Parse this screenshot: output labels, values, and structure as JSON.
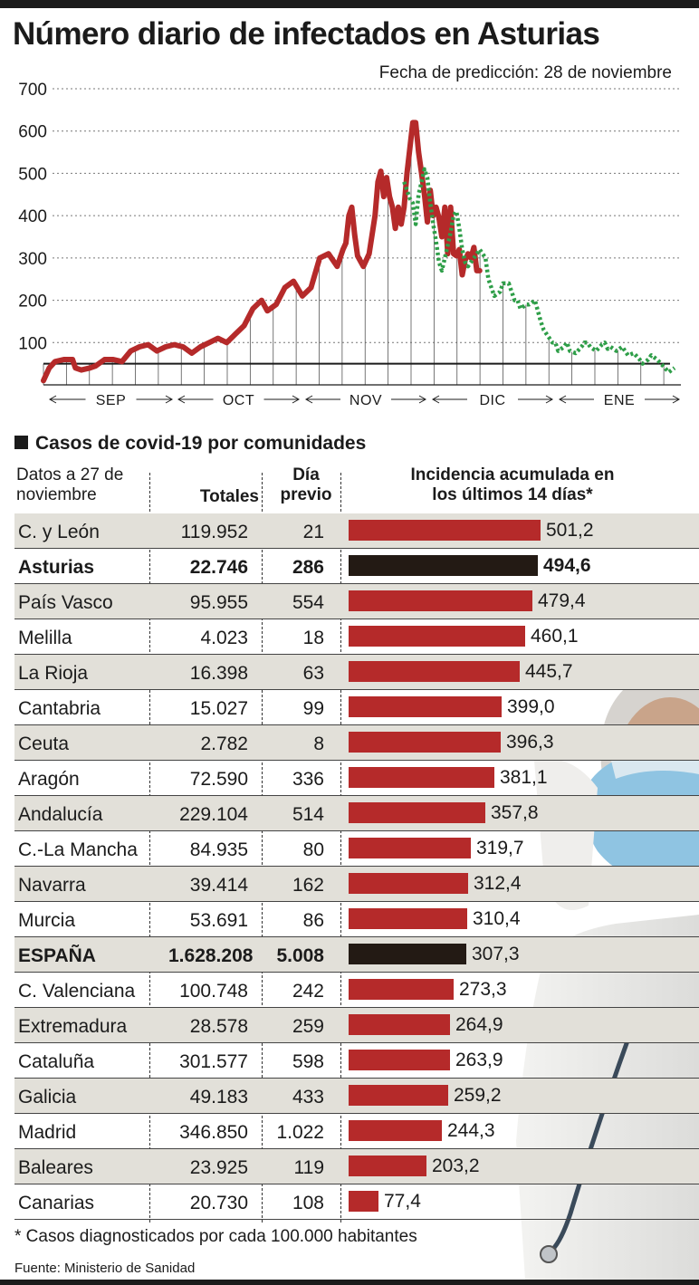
{
  "title": "Número diario de infectados en Asturias",
  "prediction_date": "Fecha de predicción: 28 de noviembre",
  "chart_data": {
    "type": "line",
    "title": "Número diario de infectados en Asturias",
    "ylim": [
      0,
      700
    ],
    "yticks": [
      "100",
      "200",
      "300",
      "400",
      "500",
      "600",
      "700"
    ],
    "reference_line": 50,
    "x_months": [
      "SEP",
      "OCT",
      "NOV",
      "DIC",
      "ENE"
    ],
    "series": [
      {
        "role": "observed",
        "color": "#b52a2a",
        "style": "solid",
        "points": [
          [
            0,
            10
          ],
          [
            2,
            40
          ],
          [
            4,
            55
          ],
          [
            7,
            60
          ],
          [
            8,
            60
          ],
          [
            10,
            60
          ],
          [
            11,
            40
          ],
          [
            13,
            35
          ],
          [
            16,
            40
          ],
          [
            18,
            45
          ],
          [
            21,
            60
          ],
          [
            24,
            60
          ],
          [
            27,
            55
          ],
          [
            30,
            80
          ],
          [
            33,
            90
          ],
          [
            36,
            95
          ],
          [
            39,
            80
          ],
          [
            42,
            90
          ],
          [
            45,
            95
          ],
          [
            48,
            90
          ],
          [
            51,
            75
          ],
          [
            54,
            90
          ],
          [
            57,
            100
          ],
          [
            60,
            110
          ],
          [
            63,
            100
          ],
          [
            66,
            120
          ],
          [
            69,
            140
          ],
          [
            72,
            180
          ],
          [
            75,
            200
          ],
          [
            77,
            175
          ],
          [
            80,
            190
          ],
          [
            83,
            230
          ],
          [
            86,
            245
          ],
          [
            89,
            210
          ],
          [
            92,
            230
          ],
          [
            95,
            300
          ],
          [
            98,
            310
          ],
          [
            101,
            280
          ],
          [
            103,
            320
          ],
          [
            104,
            335
          ],
          [
            105,
            400
          ],
          [
            106,
            420
          ],
          [
            107,
            355
          ],
          [
            108,
            305
          ],
          [
            110,
            280
          ],
          [
            112,
            310
          ],
          [
            114,
            400
          ],
          [
            115,
            480
          ],
          [
            116,
            505
          ],
          [
            117,
            445
          ],
          [
            118,
            490
          ],
          [
            119,
            445
          ],
          [
            120,
            420
          ],
          [
            121,
            370
          ],
          [
            122,
            420
          ],
          [
            123,
            380
          ],
          [
            124,
            420
          ],
          [
            125,
            500
          ],
          [
            126,
            560
          ],
          [
            127,
            620
          ],
          [
            128,
            620
          ],
          [
            129,
            550
          ],
          [
            130,
            500
          ],
          [
            131,
            450
          ],
          [
            132,
            385
          ],
          [
            133,
            460
          ],
          [
            134,
            400
          ],
          [
            135,
            420
          ],
          [
            136,
            395
          ],
          [
            137,
            350
          ],
          [
            138,
            420
          ],
          [
            139,
            310
          ],
          [
            140,
            420
          ],
          [
            141,
            310
          ],
          [
            142,
            305
          ],
          [
            143,
            320
          ],
          [
            144,
            260
          ],
          [
            145,
            295
          ],
          [
            146,
            310
          ],
          [
            147,
            300
          ],
          [
            148,
            325
          ],
          [
            149,
            270
          ],
          [
            150,
            270
          ]
        ]
      },
      {
        "role": "prediction",
        "color": "#2e9e48",
        "style": "dotted",
        "points": [
          [
            124,
            480
          ],
          [
            125,
            460
          ],
          [
            126,
            440
          ],
          [
            127,
            430
          ],
          [
            128,
            380
          ],
          [
            129,
            450
          ],
          [
            130,
            480
          ],
          [
            131,
            510
          ],
          [
            132,
            490
          ],
          [
            133,
            430
          ],
          [
            134,
            380
          ],
          [
            135,
            340
          ],
          [
            136,
            290
          ],
          [
            137,
            270
          ],
          [
            138,
            300
          ],
          [
            139,
            330
          ],
          [
            140,
            360
          ],
          [
            141,
            400
          ],
          [
            142,
            410
          ],
          [
            143,
            370
          ],
          [
            144,
            320
          ],
          [
            145,
            290
          ],
          [
            146,
            280
          ],
          [
            147,
            290
          ],
          [
            148,
            300
          ],
          [
            150,
            320
          ],
          [
            152,
            300
          ],
          [
            153,
            250
          ],
          [
            155,
            210
          ],
          [
            157,
            220
          ],
          [
            158,
            240
          ],
          [
            160,
            240
          ],
          [
            162,
            200
          ],
          [
            163,
            200
          ],
          [
            164,
            180
          ],
          [
            166,
            190
          ],
          [
            167,
            190
          ],
          [
            168,
            195
          ],
          [
            169,
            200
          ],
          [
            171,
            150
          ],
          [
            172,
            130
          ],
          [
            174,
            110
          ],
          [
            175,
            100
          ],
          [
            176,
            100
          ],
          [
            177,
            80
          ],
          [
            179,
            90
          ],
          [
            180,
            100
          ],
          [
            181,
            80
          ],
          [
            183,
            75
          ],
          [
            185,
            90
          ],
          [
            186,
            100
          ],
          [
            187,
            100
          ],
          [
            188,
            90
          ],
          [
            190,
            80
          ],
          [
            192,
            95
          ],
          [
            193,
            100
          ],
          [
            194,
            85
          ],
          [
            195,
            90
          ],
          [
            197,
            80
          ],
          [
            198,
            85
          ],
          [
            199,
            90
          ],
          [
            201,
            70
          ],
          [
            203,
            75
          ],
          [
            205,
            60
          ],
          [
            206,
            50
          ],
          [
            208,
            60
          ],
          [
            209,
            70
          ],
          [
            211,
            60
          ],
          [
            213,
            45
          ],
          [
            215,
            30
          ],
          [
            217,
            40
          ]
        ]
      }
    ]
  },
  "table": {
    "section_title": "Casos de covid-19 por comunidades",
    "head": {
      "datos_line1": "Datos a 27 de",
      "datos_line2": "noviembre",
      "totales": "Totales",
      "dia_line1": "Día",
      "dia_line2": "previo",
      "inc_line1": "Incidencia acumulada en",
      "inc_line2": "los últimos 14 días*"
    },
    "rows": [
      {
        "name": "C. y León",
        "total": "119.952",
        "prev": "21",
        "inc": "501,2",
        "value": 501.2
      },
      {
        "name": "Asturias",
        "total": "22.746",
        "prev": "286",
        "inc": "494,6",
        "value": 494.6,
        "bold": true,
        "dark": true
      },
      {
        "name": "País Vasco",
        "total": "95.955",
        "prev": "554",
        "inc": "479,4",
        "value": 479.4
      },
      {
        "name": "Melilla",
        "total": "4.023",
        "prev": "18",
        "inc": "460,1",
        "value": 460.1
      },
      {
        "name": "La Rioja",
        "total": "16.398",
        "prev": "63",
        "inc": "445,7",
        "value": 445.7
      },
      {
        "name": "Cantabria",
        "total": "15.027",
        "prev": "99",
        "inc": "399,0",
        "value": 399.0
      },
      {
        "name": "Ceuta",
        "total": "2.782",
        "prev": "8",
        "inc": "396,3",
        "value": 396.3
      },
      {
        "name": "Aragón",
        "total": "72.590",
        "prev": "336",
        "inc": "381,1",
        "value": 381.1
      },
      {
        "name": "Andalucía",
        "total": "229.104",
        "prev": "514",
        "inc": "357,8",
        "value": 357.8
      },
      {
        "name": "C.-La Mancha",
        "total": "84.935",
        "prev": "80",
        "inc": "319,7",
        "value": 319.7
      },
      {
        "name": "Navarra",
        "total": "39.414",
        "prev": "162",
        "inc": "312,4",
        "value": 312.4
      },
      {
        "name": "Murcia",
        "total": "53.691",
        "prev": "86",
        "inc": "310,4",
        "value": 310.4
      },
      {
        "name": "ESPAÑA",
        "total": "1.628.208",
        "prev": "5.008",
        "inc": "307,3",
        "value": 307.3,
        "bold": true,
        "dark": true,
        "value_plain": true
      },
      {
        "name": "C. Valenciana",
        "total": "100.748",
        "prev": "242",
        "inc": "273,3",
        "value": 273.3
      },
      {
        "name": "Extremadura",
        "total": "28.578",
        "prev": "259",
        "inc": "264,9",
        "value": 264.9
      },
      {
        "name": "Cataluña",
        "total": "301.577",
        "prev": "598",
        "inc": "263,9",
        "value": 263.9
      },
      {
        "name": "Galicia",
        "total": "49.183",
        "prev": "433",
        "inc": "259,2",
        "value": 259.2
      },
      {
        "name": "Madrid",
        "total": "346.850",
        "prev": "1.022",
        "inc": "244,3",
        "value": 244.3
      },
      {
        "name": "Baleares",
        "total": "23.925",
        "prev": "119",
        "inc": "203,2",
        "value": 203.2
      },
      {
        "name": "Canarias",
        "total": "20.730",
        "prev": "108",
        "inc": "77,4",
        "value": 77.4
      }
    ]
  },
  "footnote": "* Casos diagnosticados por cada 100.000 habitantes",
  "source": "Fuente: Ministerio de Sanidad",
  "colors": {
    "bar": "#b52a2a",
    "bar_highlight": "#231a14",
    "prediction": "#2e9e48",
    "row_shade": "#e2e0d9"
  },
  "image": {
    "subject": "health-worker-with-mask-and-goggles"
  }
}
